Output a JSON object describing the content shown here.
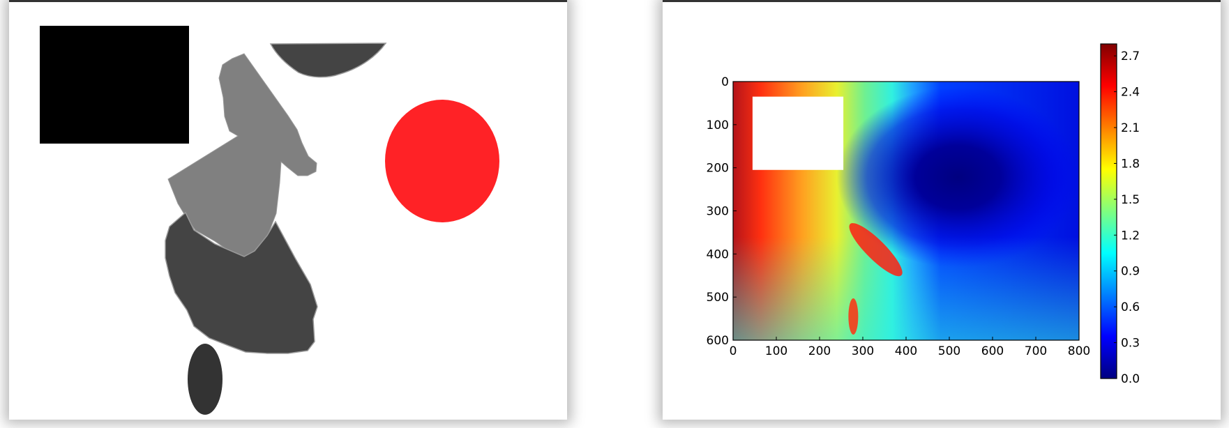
{
  "left_window": {
    "shapes": [
      {
        "kind": "rectangle",
        "color": "#000000"
      },
      {
        "kind": "half-ellipse",
        "color": "#444444"
      },
      {
        "kind": "irregular-polygon",
        "color": "#808080"
      },
      {
        "kind": "irregular-blob",
        "color": "#444444"
      },
      {
        "kind": "circle",
        "color": "#ff2226"
      },
      {
        "kind": "ellipse",
        "color": "#333333"
      }
    ]
  },
  "chart_data": {
    "type": "heatmap",
    "title": "",
    "xlabel": "",
    "ylabel": "",
    "xlim": [
      0,
      800
    ],
    "ylim": [
      600,
      0
    ],
    "x_ticks": [
      0,
      100,
      200,
      300,
      400,
      500,
      600,
      700,
      800
    ],
    "y_ticks": [
      0,
      100,
      200,
      300,
      400,
      500,
      600
    ],
    "colormap": "jet",
    "colorbar": {
      "range": [
        0.0,
        2.8
      ],
      "ticks": [
        "0.0",
        "0.3",
        "0.6",
        "0.9",
        "1.2",
        "1.5",
        "1.8",
        "2.1",
        "2.4",
        "2.7"
      ]
    },
    "minimum_location": {
      "x": 620,
      "y": 230,
      "value": 0.0
    },
    "masked_region": {
      "x": [
        45,
        255
      ],
      "y": [
        35,
        205
      ]
    },
    "grid": false
  }
}
